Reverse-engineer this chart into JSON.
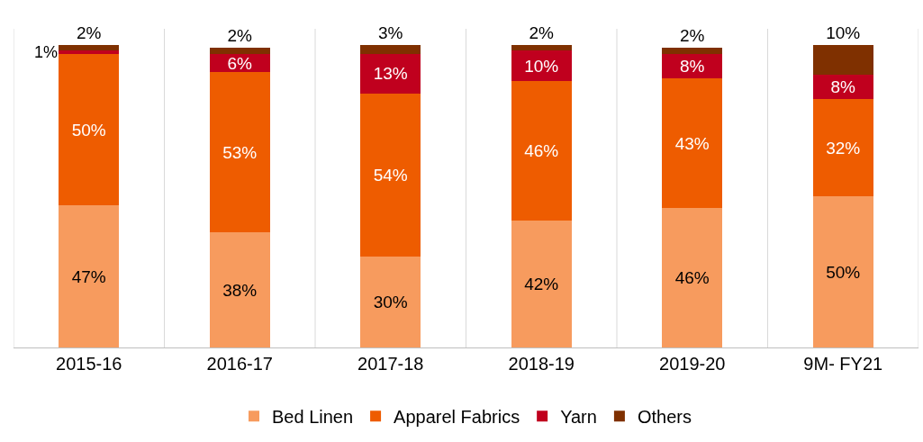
{
  "chart_data": {
    "type": "bar",
    "stacked": true,
    "categories": [
      "2015-16",
      "2016-17",
      "2017-18",
      "2018-19",
      "2019-20",
      "9M- FY21"
    ],
    "series": [
      {
        "name": "Bed Linen",
        "color": "#f79b5e",
        "values": [
          47,
          38,
          30,
          42,
          46,
          50
        ],
        "value_labels": [
          "47%",
          "38%",
          "30%",
          "42%",
          "46%",
          "50%"
        ]
      },
      {
        "name": "Apparel Fabrics",
        "color": "#ee5c00",
        "values": [
          50,
          53,
          54,
          46,
          43,
          32
        ],
        "value_labels": [
          "50%",
          "53%",
          "54%",
          "46%",
          "43%",
          "32%"
        ]
      },
      {
        "name": "Yarn",
        "color": "#c0001e",
        "values": [
          1,
          6,
          13,
          10,
          8,
          8
        ],
        "value_labels": [
          "1%",
          "6%",
          "13%",
          "10%",
          "8%",
          "8%"
        ]
      },
      {
        "name": "Others",
        "color": "#7f3000",
        "values": [
          2,
          2,
          3,
          2,
          2,
          10
        ],
        "value_labels": [
          "2%",
          "2%",
          "3%",
          "2%",
          "2%",
          "10%"
        ]
      }
    ],
    "tick_labels": "x",
    "grid": "x",
    "legend": "bottom"
  }
}
